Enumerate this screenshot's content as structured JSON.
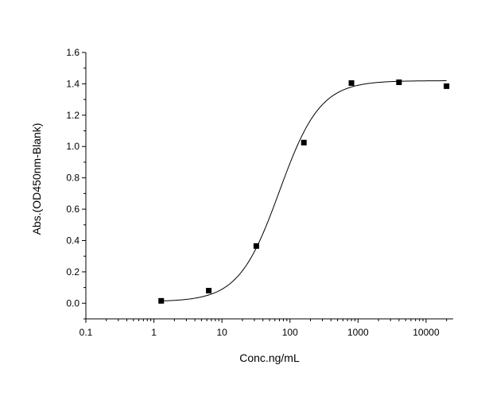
{
  "chart_data": {
    "type": "scatter",
    "title": "",
    "xlabel": "Conc.ng/mL",
    "ylabel": "Abs.(OD450nm-Blank)",
    "x_scale": "log",
    "xlim": [
      0.1,
      25000
    ],
    "ylim": [
      -0.1,
      1.6
    ],
    "x_ticks": [
      0.1,
      1,
      10,
      100,
      1000,
      10000
    ],
    "x_tick_labels": [
      "0.1",
      "1",
      "10",
      "100",
      "1000",
      "10000"
    ],
    "y_ticks": [
      0.0,
      0.2,
      0.4,
      0.6,
      0.8,
      1.0,
      1.2,
      1.4,
      1.6
    ],
    "y_tick_labels": [
      "0.0",
      "0.2",
      "0.4",
      "0.6",
      "0.8",
      "1.0",
      "1.2",
      "1.4",
      "1.6"
    ],
    "grid": false,
    "legend": "none",
    "series": [
      {
        "x": [
          1.28,
          6.4,
          32,
          160,
          800,
          4000,
          20000
        ],
        "values": [
          0.015,
          0.08,
          0.365,
          1.025,
          1.405,
          1.41,
          1.385
        ],
        "marker": "square",
        "color": "#000000"
      }
    ],
    "fit_curve": {
      "model": "4PL",
      "bottom": 0.01,
      "top": 1.42,
      "ec50": 70,
      "hill": 1.45,
      "x_range": [
        1.28,
        20000
      ],
      "color": "#000000"
    }
  }
}
